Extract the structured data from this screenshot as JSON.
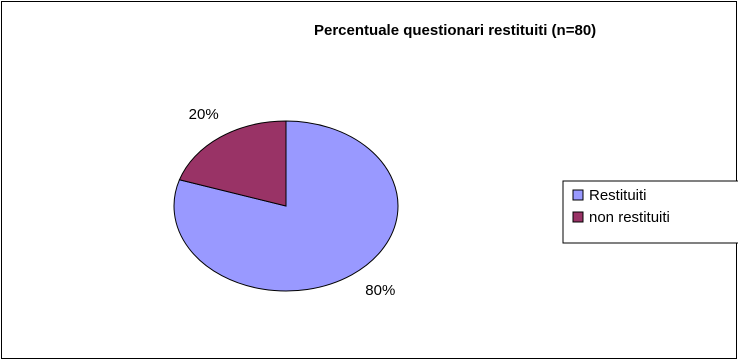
{
  "chart_data": {
    "type": "pie",
    "title": "Percentuale questionari restituiti (n=80)",
    "categories": [
      "Restituiti",
      "non restituiti"
    ],
    "values": [
      80,
      20
    ],
    "data_labels": [
      "80%",
      "20%"
    ],
    "colors": [
      "#9999FF",
      "#993366"
    ],
    "legend": {
      "placement": "right",
      "entries": [
        "Restituiti",
        "non restituiti"
      ]
    },
    "start_angle_deg": 0,
    "direction": "clockwise"
  }
}
